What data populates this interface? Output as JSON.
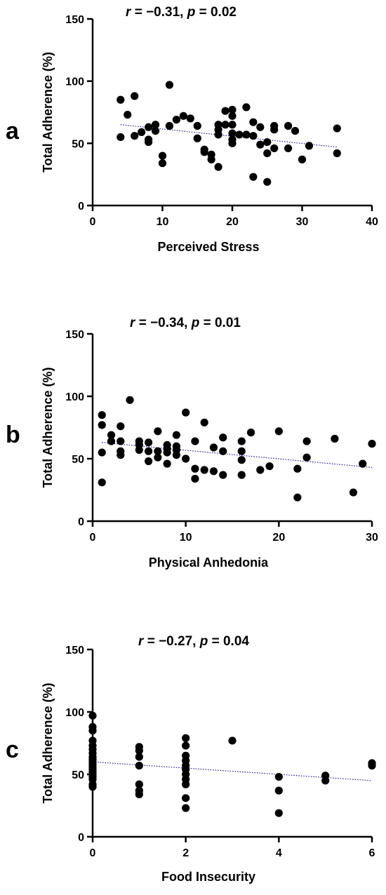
{
  "chart_data": [
    {
      "type": "scatter",
      "panel_label": "a",
      "title": {
        "r_symbol": "r",
        "r_text": " = −0.31, ",
        "p_symbol": "p",
        "p_text": " = 0.02"
      },
      "xlabel": "Perceived Stress",
      "ylabel": "Total Adherence (%)",
      "xlim": [
        0,
        40
      ],
      "ylim": [
        0,
        150
      ],
      "xticks": [
        0,
        10,
        20,
        30,
        40
      ],
      "yticks": [
        0,
        50,
        100,
        150
      ],
      "grid": false,
      "trendline": {
        "x": [
          4,
          35
        ],
        "y": [
          65,
          47
        ],
        "style": "dotted",
        "color": "#1a1a8c"
      },
      "series": [
        {
          "points": [
            [
              4,
              85
            ],
            [
              4,
              55
            ],
            [
              5,
              73
            ],
            [
              6,
              88
            ],
            [
              6,
              56
            ],
            [
              7,
              59
            ],
            [
              8,
              63
            ],
            [
              8,
              53
            ],
            [
              8,
              51
            ],
            [
              9,
              65
            ],
            [
              9,
              60
            ],
            [
              10,
              40
            ],
            [
              10,
              34
            ],
            [
              11,
              97
            ],
            [
              11,
              64
            ],
            [
              12,
              69
            ],
            [
              13,
              72
            ],
            [
              14,
              70
            ],
            [
              15,
              64
            ],
            [
              15,
              54
            ],
            [
              16,
              45
            ],
            [
              16,
              43
            ],
            [
              17,
              41
            ],
            [
              17,
              37
            ],
            [
              18,
              65
            ],
            [
              18,
              61
            ],
            [
              18,
              57
            ],
            [
              18,
              31
            ],
            [
              19,
              76
            ],
            [
              19,
              65
            ],
            [
              20,
              77
            ],
            [
              20,
              72
            ],
            [
              20,
              65
            ],
            [
              20,
              58
            ],
            [
              20,
              53
            ],
            [
              20,
              50
            ],
            [
              21,
              57
            ],
            [
              22,
              79
            ],
            [
              22,
              57
            ],
            [
              23,
              67
            ],
            [
              23,
              56
            ],
            [
              23,
              23
            ],
            [
              24,
              63
            ],
            [
              24,
              49
            ],
            [
              25,
              51
            ],
            [
              25,
              42
            ],
            [
              25,
              19
            ],
            [
              26,
              64
            ],
            [
              26,
              61
            ],
            [
              26,
              46
            ],
            [
              28,
              64
            ],
            [
              28,
              46
            ],
            [
              29,
              60
            ],
            [
              30,
              37
            ],
            [
              31,
              48
            ],
            [
              35,
              62
            ],
            [
              35,
              42
            ]
          ]
        }
      ]
    },
    {
      "type": "scatter",
      "panel_label": "b",
      "title": {
        "r_symbol": "r",
        "r_text": " = −0.34, ",
        "p_symbol": "p",
        "p_text": " = 0.01"
      },
      "xlabel": "Physical Anhedonia",
      "ylabel": "Total Adherence (%)",
      "xlim": [
        0,
        30
      ],
      "ylim": [
        0,
        150
      ],
      "xticks": [
        0,
        10,
        20,
        30
      ],
      "yticks": [
        0,
        50,
        100,
        150
      ],
      "grid": false,
      "trendline": {
        "x": [
          1,
          30
        ],
        "y": [
          63,
          43
        ],
        "style": "dotted",
        "color": "#1a1a8c"
      },
      "series": [
        {
          "points": [
            [
              1,
              85
            ],
            [
              1,
              77
            ],
            [
              1,
              55
            ],
            [
              1,
              31
            ],
            [
              2,
              69
            ],
            [
              2,
              64
            ],
            [
              3,
              76
            ],
            [
              3,
              64
            ],
            [
              3,
              56
            ],
            [
              3,
              53
            ],
            [
              4,
              97
            ],
            [
              5,
              64
            ],
            [
              5,
              61
            ],
            [
              5,
              57
            ],
            [
              6,
              63
            ],
            [
              6,
              56
            ],
            [
              6,
              48
            ],
            [
              7,
              72
            ],
            [
              7,
              56
            ],
            [
              7,
              51
            ],
            [
              8,
              61
            ],
            [
              8,
              58
            ],
            [
              8,
              55
            ],
            [
              8,
              46
            ],
            [
              9,
              69
            ],
            [
              9,
              60
            ],
            [
              9,
              57
            ],
            [
              9,
              53
            ],
            [
              10,
              87
            ],
            [
              10,
              50
            ],
            [
              11,
              64
            ],
            [
              11,
              42
            ],
            [
              11,
              34
            ],
            [
              12,
              79
            ],
            [
              12,
              41
            ],
            [
              13,
              59
            ],
            [
              13,
              40
            ],
            [
              14,
              67
            ],
            [
              14,
              56
            ],
            [
              14,
              37
            ],
            [
              16,
              64
            ],
            [
              16,
              56
            ],
            [
              16,
              49
            ],
            [
              16,
              37
            ],
            [
              17,
              71
            ],
            [
              18,
              41
            ],
            [
              19,
              44
            ],
            [
              20,
              72
            ],
            [
              22,
              42
            ],
            [
              22,
              19
            ],
            [
              23,
              64
            ],
            [
              23,
              51
            ],
            [
              26,
              66
            ],
            [
              28,
              23
            ],
            [
              29,
              46
            ],
            [
              30,
              62
            ]
          ]
        }
      ]
    },
    {
      "type": "scatter",
      "panel_label": "c",
      "title": {
        "r_symbol": "r",
        "r_text": " = −0.27, ",
        "p_symbol": "p",
        "p_text": " = 0.04"
      },
      "xlabel": "Food Insecurity",
      "ylabel": "Total Adherence (%)",
      "xlim": [
        0,
        6
      ],
      "ylim": [
        0,
        150
      ],
      "xticks": [
        0,
        2,
        4,
        6
      ],
      "yticks": [
        0,
        50,
        100,
        150
      ],
      "grid": false,
      "trendline": {
        "x": [
          0,
          6
        ],
        "y": [
          60,
          45
        ],
        "style": "dotted",
        "color": "#1a1a8c"
      },
      "series": [
        {
          "points": [
            [
              0,
              97
            ],
            [
              0,
              88
            ],
            [
              0,
              85
            ],
            [
              0,
              77
            ],
            [
              0,
              73
            ],
            [
              0,
              70
            ],
            [
              0,
              67
            ],
            [
              0,
              64
            ],
            [
              0,
              62
            ],
            [
              0,
              60
            ],
            [
              0,
              58
            ],
            [
              0,
              56
            ],
            [
              0,
              54
            ],
            [
              0,
              52
            ],
            [
              0,
              50
            ],
            [
              0,
              48
            ],
            [
              0,
              46
            ],
            [
              0,
              42
            ],
            [
              0,
              40
            ],
            [
              1,
              72
            ],
            [
              1,
              69
            ],
            [
              1,
              64
            ],
            [
              1,
              57
            ],
            [
              1,
              42
            ],
            [
              1,
              37
            ],
            [
              1,
              34
            ],
            [
              2,
              79
            ],
            [
              2,
              73
            ],
            [
              2,
              65
            ],
            [
              2,
              61
            ],
            [
              2,
              57
            ],
            [
              2,
              54
            ],
            [
              2,
              50
            ],
            [
              2,
              46
            ],
            [
              2,
              42
            ],
            [
              2,
              31
            ],
            [
              2,
              23
            ],
            [
              3,
              77
            ],
            [
              4,
              48
            ],
            [
              4,
              37
            ],
            [
              4,
              19
            ],
            [
              5,
              49
            ],
            [
              5,
              45
            ],
            [
              6,
              59
            ],
            [
              6,
              57
            ]
          ]
        }
      ]
    }
  ]
}
